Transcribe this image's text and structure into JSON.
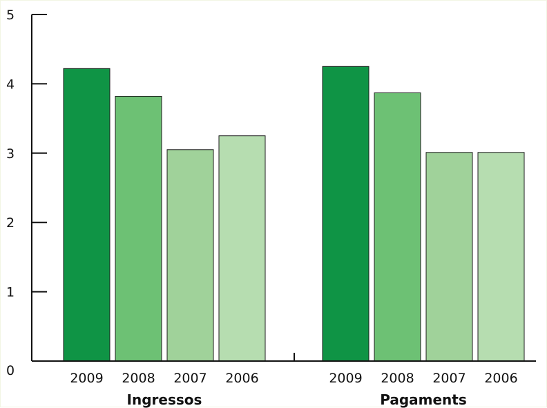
{
  "chart_data": {
    "type": "bar",
    "ylim": [
      0,
      5
    ],
    "y_ticks": [
      "0",
      "1",
      "2",
      "3",
      "4",
      "5"
    ],
    "grid": false,
    "groups": [
      {
        "label": "Ingressos",
        "categories": [
          "2009",
          "2008",
          "2007",
          "2006"
        ],
        "values": [
          4.22,
          3.82,
          3.05,
          3.25
        ]
      },
      {
        "label": "Pagaments",
        "categories": [
          "2009",
          "2008",
          "2007",
          "2006"
        ],
        "values": [
          4.25,
          3.87,
          3.01,
          3.01
        ]
      }
    ],
    "colors": [
      "#0f9445",
      "#6dc174",
      "#a0d29a",
      "#b6ddb0"
    ]
  }
}
